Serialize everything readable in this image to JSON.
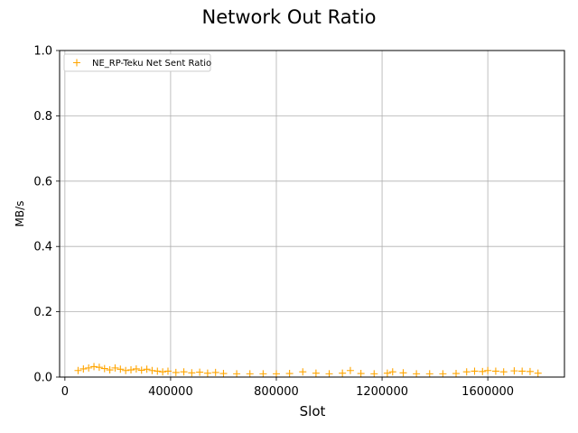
{
  "chart_data": {
    "type": "scatter",
    "title": "Network Out Ratio",
    "xlabel": "Slot",
    "ylabel": "MB/s",
    "xlim": [
      -20000,
      1890000
    ],
    "ylim": [
      0,
      1.0
    ],
    "xticks": [
      0,
      400000,
      800000,
      1200000,
      1600000
    ],
    "xtick_labels": [
      "0",
      "400000",
      "800000",
      "1200000",
      "1600000"
    ],
    "yticks": [
      0.0,
      0.2,
      0.4,
      0.6,
      0.8,
      1.0
    ],
    "ytick_labels": [
      "0.0",
      "0.2",
      "0.4",
      "0.6",
      "0.8",
      "1.0"
    ],
    "grid": true,
    "legend_position": "top-left",
    "series": [
      {
        "name": "NE_RP-Teku Net Sent Ratio",
        "color": "#ffa500",
        "marker": "plus",
        "x": [
          50000,
          70000,
          90000,
          110000,
          130000,
          150000,
          170000,
          190000,
          210000,
          230000,
          250000,
          270000,
          290000,
          310000,
          330000,
          350000,
          370000,
          390000,
          420000,
          450000,
          480000,
          510000,
          540000,
          570000,
          600000,
          650000,
          700000,
          750000,
          800000,
          850000,
          900000,
          950000,
          1000000,
          1050000,
          1080000,
          1120000,
          1170000,
          1220000,
          1240000,
          1280000,
          1330000,
          1380000,
          1430000,
          1480000,
          1520000,
          1550000,
          1580000,
          1600000,
          1630000,
          1660000,
          1700000,
          1730000,
          1760000,
          1790000
        ],
        "y": [
          0.02,
          0.025,
          0.028,
          0.032,
          0.03,
          0.026,
          0.022,
          0.028,
          0.024,
          0.02,
          0.022,
          0.025,
          0.021,
          0.024,
          0.02,
          0.018,
          0.016,
          0.018,
          0.014,
          0.016,
          0.013,
          0.015,
          0.012,
          0.014,
          0.011,
          0.01,
          0.01,
          0.01,
          0.01,
          0.011,
          0.016,
          0.012,
          0.01,
          0.012,
          0.02,
          0.011,
          0.01,
          0.012,
          0.016,
          0.013,
          0.01,
          0.01,
          0.01,
          0.011,
          0.016,
          0.018,
          0.017,
          0.02,
          0.018,
          0.016,
          0.019,
          0.018,
          0.017,
          0.012
        ]
      }
    ]
  }
}
